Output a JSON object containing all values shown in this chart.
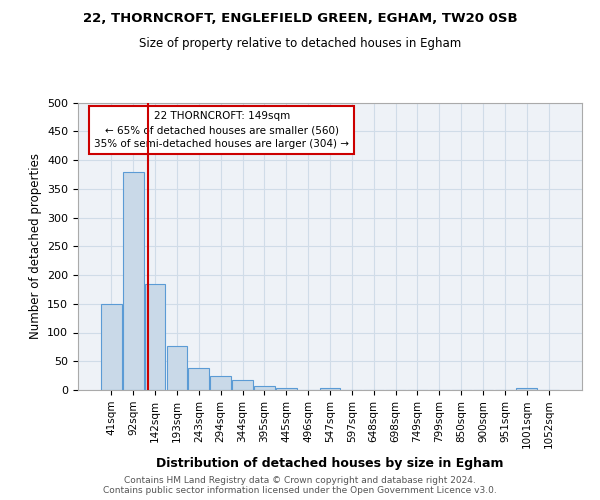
{
  "title1": "22, THORNCROFT, ENGLEFIELD GREEN, EGHAM, TW20 0SB",
  "title2": "Size of property relative to detached houses in Egham",
  "xlabel": "Distribution of detached houses by size in Egham",
  "ylabel": "Number of detached properties",
  "bin_labels": [
    "41sqm",
    "92sqm",
    "142sqm",
    "193sqm",
    "243sqm",
    "294sqm",
    "344sqm",
    "395sqm",
    "445sqm",
    "496sqm",
    "547sqm",
    "597sqm",
    "648sqm",
    "698sqm",
    "749sqm",
    "799sqm",
    "850sqm",
    "900sqm",
    "951sqm",
    "1001sqm",
    "1052sqm"
  ],
  "bar_values": [
    150,
    380,
    185,
    77,
    38,
    25,
    17,
    7,
    3,
    0,
    4,
    0,
    0,
    0,
    0,
    0,
    0,
    0,
    0,
    4,
    0
  ],
  "bar_color": "#c9d9e8",
  "bar_edge_color": "#5b9bd5",
  "grid_color": "#d0dce8",
  "background_color": "#eef2f7",
  "vline_color": "#cc0000",
  "annotation_text": "22 THORNCROFT: 149sqm\n← 65% of detached houses are smaller (560)\n35% of semi-detached houses are larger (304) →",
  "annotation_box_edge": "#cc0000",
  "footer_text": "Contains HM Land Registry data © Crown copyright and database right 2024.\nContains public sector information licensed under the Open Government Licence v3.0.",
  "ylim": [
    0,
    500
  ],
  "yticks": [
    0,
    50,
    100,
    150,
    200,
    250,
    300,
    350,
    400,
    450,
    500
  ]
}
